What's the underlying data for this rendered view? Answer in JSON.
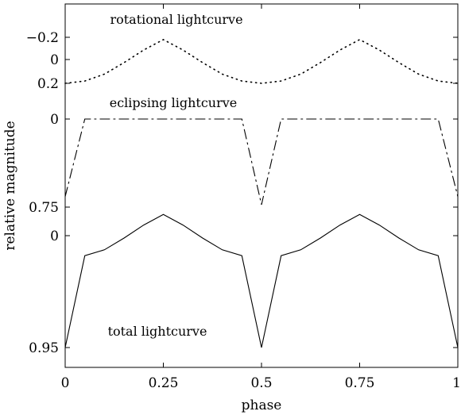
{
  "chart_data": {
    "type": "line",
    "xlabel": "phase",
    "ylabel": "relative magnitude",
    "xlim": [
      0,
      1
    ],
    "xticks": [
      0,
      0.25,
      0.5,
      0.75,
      1
    ],
    "xtick_labels": [
      "0",
      "0.25",
      "0.5",
      "0.75",
      "1"
    ],
    "grid": false,
    "panels": [
      {
        "name": "rotational lightcurve",
        "line_style": "dotted",
        "ylim_inverted": [
          -0.2,
          0.2
        ],
        "yticks": [
          -0.2,
          0,
          0.2
        ],
        "ytick_labels": [
          "−0.2",
          "0",
          "0.2"
        ],
        "x": [
          0,
          0.05,
          0.1,
          0.15,
          0.2,
          0.25,
          0.3,
          0.35,
          0.4,
          0.45,
          0.5,
          0.55,
          0.6,
          0.65,
          0.7,
          0.75,
          0.8,
          0.85,
          0.9,
          0.95,
          1
        ],
        "values": [
          0.2,
          0.18,
          0.12,
          0.02,
          -0.09,
          -0.18,
          -0.09,
          0.02,
          0.12,
          0.18,
          0.2,
          0.18,
          0.12,
          0.02,
          -0.09,
          -0.18,
          -0.09,
          0.02,
          0.12,
          0.18,
          0.2
        ]
      },
      {
        "name": "eclipsing lightcurve",
        "line_style": "dashdot",
        "ytick_labels": [
          "0",
          "0.75"
        ],
        "yticks": [
          0,
          0.75
        ],
        "x": [
          0,
          0.05,
          0.45,
          0.5,
          0.55,
          0.95,
          1
        ],
        "values": [
          0.66,
          0,
          0,
          0.73,
          0,
          0,
          0.66
        ]
      },
      {
        "name": "total lightcurve",
        "line_style": "solid",
        "ytick_labels": [
          "0",
          "0.95"
        ],
        "yticks": [
          0,
          0.95
        ],
        "x": [
          0,
          0.05,
          0.1,
          0.15,
          0.2,
          0.25,
          0.3,
          0.35,
          0.4,
          0.45,
          0.5,
          0.55,
          0.6,
          0.65,
          0.7,
          0.75,
          0.8,
          0.85,
          0.9,
          0.95,
          1
        ],
        "values": [
          0.95,
          0.17,
          0.12,
          0.02,
          -0.09,
          -0.18,
          -0.09,
          0.02,
          0.12,
          0.17,
          0.95,
          0.17,
          0.12,
          0.02,
          -0.09,
          -0.18,
          -0.09,
          0.02,
          0.12,
          0.17,
          0.95
        ]
      }
    ]
  }
}
